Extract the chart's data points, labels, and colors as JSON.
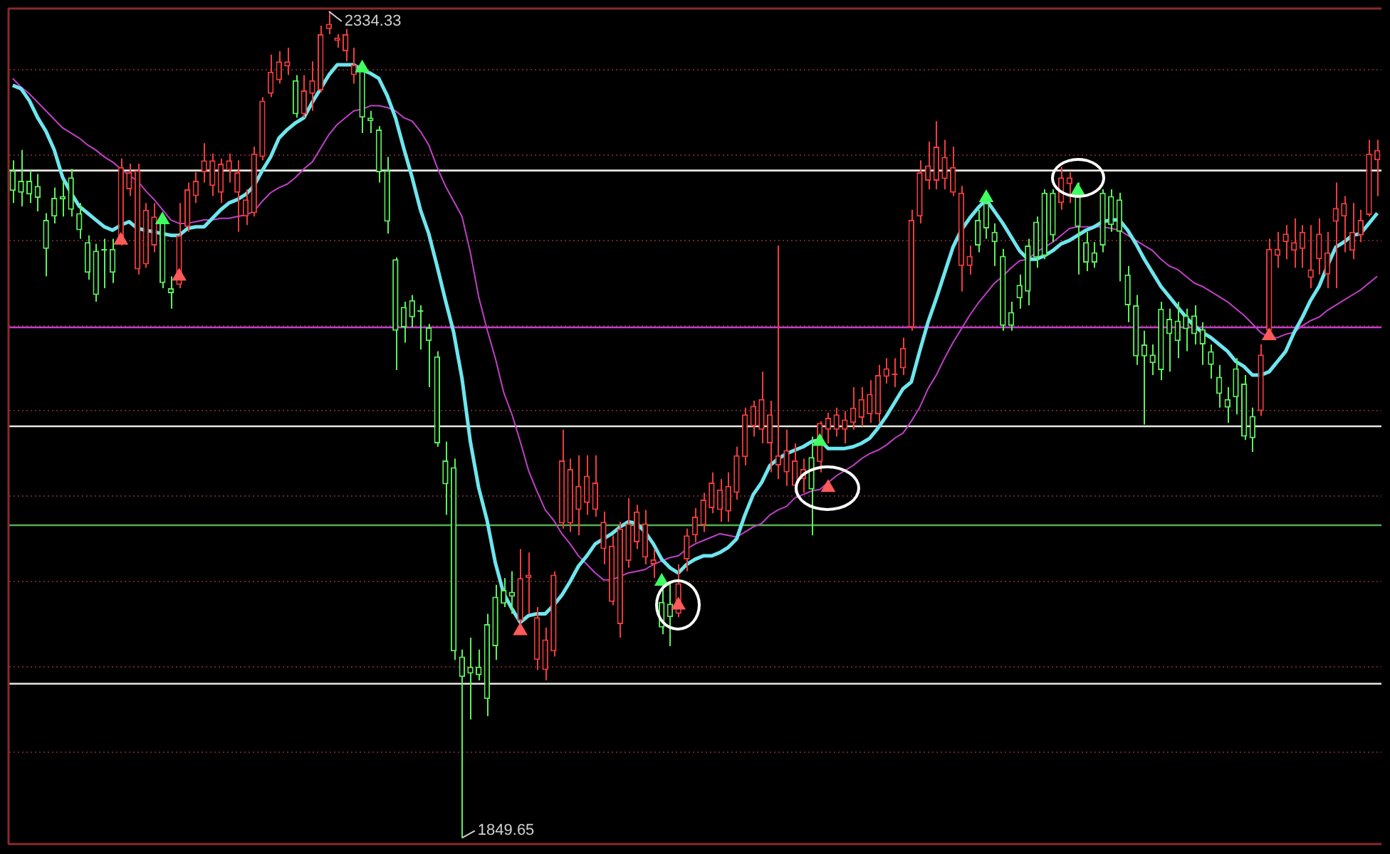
{
  "chart_data": {
    "type": "candlestick",
    "categories": [
      null,
      null,
      null,
      null,
      null,
      null,
      null,
      null,
      null,
      null,
      null,
      null,
      null,
      null,
      null,
      null,
      null,
      null,
      null,
      null,
      null,
      null,
      null,
      null,
      null,
      null,
      null,
      null,
      null,
      null,
      null,
      null,
      null,
      null,
      null,
      null,
      null,
      null,
      null,
      null,
      null,
      null,
      null,
      null,
      null,
      null,
      null,
      null,
      null,
      null,
      null,
      null,
      null,
      null,
      null,
      null,
      null,
      null,
      null,
      null,
      null,
      null,
      null,
      null,
      null,
      null,
      null,
      null,
      null,
      null,
      null,
      null,
      null,
      null,
      null,
      null,
      null,
      null,
      null,
      null,
      null,
      null,
      null,
      null,
      null,
      null,
      null,
      null,
      null,
      null,
      null,
      null,
      null,
      null,
      null,
      null,
      null,
      null,
      null,
      null,
      null,
      null,
      null,
      null,
      null,
      null,
      null,
      null,
      null,
      null,
      null,
      null,
      null,
      null,
      null,
      null,
      null,
      null,
      null,
      null,
      null,
      null,
      null,
      null,
      null,
      null,
      null,
      null,
      null,
      null,
      null,
      null,
      null,
      null,
      null,
      null,
      null,
      null,
      null,
      null,
      null,
      null,
      null,
      null,
      null,
      null,
      null,
      null,
      null,
      null,
      null,
      null,
      null,
      null,
      null,
      null,
      null,
      null,
      null,
      null,
      null,
      null,
      null,
      null,
      null
    ],
    "ohlc": [
      [
        2241,
        2247,
        2222,
        2229
      ],
      [
        2235,
        2253,
        2220,
        2228
      ],
      [
        2235,
        2241,
        2222,
        2227
      ],
      [
        2232,
        2239,
        2217,
        2225
      ],
      [
        2212,
        2216,
        2179,
        2195
      ],
      [
        2225,
        2231,
        2210,
        2214
      ],
      [
        2226,
        2235,
        2214,
        2224
      ],
      [
        2237,
        2242,
        2214,
        2218
      ],
      [
        2216,
        2222,
        2201,
        2206
      ],
      [
        2199,
        2203,
        2177,
        2181
      ],
      [
        2194,
        2198,
        2164,
        2168
      ],
      [
        2195,
        2201,
        2172,
        2194
      ],
      [
        2195,
        2201,
        2175,
        2181
      ],
      [
        2199,
        2248,
        2197,
        2243
      ],
      [
        2230,
        2245,
        2226,
        2240
      ],
      [
        2183,
        2245,
        2180,
        2241
      ],
      [
        2186,
        2222,
        2184,
        2218
      ],
      [
        2197,
        2222,
        2193,
        2214
      ],
      [
        2212,
        2215,
        2172,
        2175
      ],
      [
        2172,
        2179,
        2160,
        2169
      ],
      [
        2174,
        2222,
        2172,
        2203
      ],
      [
        2208,
        2234,
        2205,
        2230
      ],
      [
        2226,
        2240,
        2222,
        2235
      ],
      [
        2240,
        2257,
        2234,
        2247
      ],
      [
        2232,
        2251,
        2226,
        2247
      ],
      [
        2228,
        2248,
        2222,
        2245
      ],
      [
        2241,
        2251,
        2234,
        2247
      ],
      [
        2228,
        2247,
        2205,
        2240
      ],
      [
        2214,
        2230,
        2209,
        2224
      ],
      [
        2216,
        2255,
        2214,
        2251
      ],
      [
        2249,
        2284,
        2247,
        2282
      ],
      [
        2286,
        2309,
        2284,
        2299
      ],
      [
        2294,
        2311,
        2292,
        2305
      ],
      [
        2302,
        2313,
        2297,
        2305
      ],
      [
        2294,
        2297,
        2272,
        2274
      ],
      [
        2274,
        2297,
        2272,
        2288
      ],
      [
        2286,
        2305,
        2276,
        2294
      ],
      [
        2288,
        2326,
        2287,
        2321
      ],
      [
        2324,
        2334.33,
        2321,
        2327
      ],
      [
        2317,
        2321,
        2313,
        2319
      ],
      [
        2311,
        2324,
        2305,
        2321
      ],
      [
        2297,
        2313,
        2292,
        2303
      ],
      [
        2301,
        2305,
        2263,
        2272
      ],
      [
        2272,
        2276,
        2263,
        2270
      ],
      [
        2265,
        2267,
        2234,
        2240
      ],
      [
        2241,
        2249,
        2204,
        2211
      ],
      [
        2189,
        2190,
        2124,
        2147
      ],
      [
        2161,
        2164,
        2140,
        2149
      ],
      [
        2165,
        2168,
        2149,
        2155
      ],
      [
        2159,
        2162,
        2136,
        2158
      ],
      [
        2149,
        2151,
        2114,
        2141
      ],
      [
        2132,
        2135,
        2079,
        2081
      ],
      [
        2071,
        2082,
        2039,
        2057
      ],
      [
        2067,
        2072,
        1954,
        1959
      ],
      [
        1956,
        1960,
        1849.65,
        1944
      ],
      [
        1950,
        1967,
        1919,
        1946
      ],
      [
        1950,
        1960,
        1942,
        1945
      ],
      [
        1975,
        1981,
        1921,
        1931
      ],
      [
        1991,
        1998,
        1954,
        1962
      ],
      [
        1995,
        2002,
        1985,
        1987
      ],
      [
        1994,
        2006,
        1981,
        1991
      ],
      [
        1977,
        2019,
        1973,
        2002
      ],
      [
        2002,
        2017,
        1981,
        2004
      ],
      [
        1954,
        1985,
        1948,
        1979
      ],
      [
        1948,
        1973,
        1942,
        1966
      ],
      [
        1959,
        2006,
        1956,
        2004
      ],
      [
        2034,
        2089,
        2031,
        2071
      ],
      [
        2034,
        2072,
        2029,
        2066
      ],
      [
        2042,
        2074,
        2027,
        2056
      ],
      [
        2046,
        2074,
        2039,
        2062
      ],
      [
        2042,
        2074,
        2038,
        2058
      ],
      [
        2019,
        2041,
        2010,
        2035
      ],
      [
        1988,
        2027,
        1986,
        2021
      ],
      [
        1975,
        2035,
        1967,
        2031
      ],
      [
        2012,
        2049,
        2008,
        2034
      ],
      [
        2023,
        2045,
        2019,
        2041
      ],
      [
        2014,
        2042,
        2010,
        2034
      ],
      [
        2010,
        2019,
        2002,
        2013
      ],
      [
        1988,
        2002,
        1969,
        1973
      ],
      [
        1987,
        1999,
        1962,
        1979
      ],
      [
        1981,
        2010,
        1979,
        1999
      ],
      [
        2013,
        2031,
        2006,
        2027
      ],
      [
        2027,
        2043,
        2023,
        2038
      ],
      [
        2033,
        2052,
        2029,
        2048
      ],
      [
        2043,
        2064,
        2040,
        2058
      ],
      [
        2042,
        2060,
        2035,
        2054
      ],
      [
        2041,
        2064,
        2035,
        2056
      ],
      [
        2052,
        2079,
        2048,
        2074
      ],
      [
        2073,
        2102,
        2068,
        2098
      ],
      [
        2091,
        2106,
        2085,
        2103
      ],
      [
        2089,
        2123,
        2081,
        2107
      ],
      [
        2081,
        2106,
        2064,
        2098
      ],
      [
        2068,
        2197,
        2060,
        2074
      ],
      [
        2064,
        2089,
        2056,
        2077
      ],
      [
        2056,
        2081,
        2052,
        2071
      ],
      [
        2060,
        2072,
        2052,
        2066
      ],
      [
        2073,
        2085,
        2027,
        2054
      ],
      [
        2070,
        2094,
        2064,
        2093
      ],
      [
        2089,
        2099,
        2081,
        2096
      ],
      [
        2089,
        2102,
        2085,
        2098
      ],
      [
        2089,
        2100,
        2081,
        2095
      ],
      [
        2093,
        2114,
        2089,
        2102
      ],
      [
        2096,
        2114,
        2091,
        2107
      ],
      [
        2098,
        2118,
        2093,
        2110
      ],
      [
        2098,
        2127,
        2093,
        2121
      ],
      [
        2120,
        2131,
        2116,
        2125
      ],
      [
        2121,
        2131,
        2114,
        2122
      ],
      [
        2125,
        2143,
        2121,
        2137
      ],
      [
        2149,
        2218,
        2147,
        2212
      ],
      [
        2214,
        2247,
        2210,
        2240
      ],
      [
        2235,
        2258,
        2230,
        2244
      ],
      [
        2235,
        2270,
        2230,
        2255
      ],
      [
        2236,
        2259,
        2230,
        2249
      ],
      [
        2228,
        2255,
        2226,
        2243
      ],
      [
        2185,
        2232,
        2170,
        2228
      ],
      [
        2185,
        2197,
        2180,
        2191
      ],
      [
        2212,
        2218,
        2193,
        2197
      ],
      [
        2222,
        2226,
        2201,
        2207
      ],
      [
        2205,
        2210,
        2185,
        2199
      ],
      [
        2191,
        2195,
        2147,
        2150
      ],
      [
        2158,
        2164,
        2147,
        2150
      ],
      [
        2174,
        2180,
        2160,
        2166
      ],
      [
        2197,
        2201,
        2162,
        2170
      ],
      [
        2211,
        2214,
        2184,
        2190
      ],
      [
        2228,
        2230,
        2189,
        2191
      ],
      [
        2228,
        2230,
        2199,
        2203
      ],
      [
        2222,
        2243,
        2218,
        2237
      ],
      [
        2233,
        2240,
        2222,
        2237
      ],
      [
        2230,
        2234,
        2180,
        2208
      ],
      [
        2199,
        2205,
        2182,
        2187
      ],
      [
        2193,
        2199,
        2184,
        2187
      ],
      [
        2228,
        2230,
        2193,
        2197
      ],
      [
        2226,
        2230,
        2205,
        2209
      ],
      [
        2224,
        2228,
        2176,
        2205
      ],
      [
        2180,
        2185,
        2152,
        2162
      ],
      [
        2162,
        2168,
        2127,
        2132
      ],
      [
        2139,
        2147,
        2092,
        2132
      ],
      [
        2133,
        2139,
        2121,
        2128
      ],
      [
        2160,
        2164,
        2118,
        2124
      ],
      [
        2154,
        2160,
        2123,
        2145
      ],
      [
        2153,
        2164,
        2131,
        2141
      ],
      [
        2156,
        2160,
        2135,
        2148
      ],
      [
        2156,
        2162,
        2139,
        2145
      ],
      [
        2148,
        2152,
        2127,
        2139
      ],
      [
        2135,
        2139,
        2119,
        2127
      ],
      [
        2120,
        2127,
        2102,
        2110
      ],
      [
        2107,
        2114,
        2093,
        2102
      ],
      [
        2125,
        2131,
        2098,
        2108
      ],
      [
        2116,
        2121,
        2083,
        2085
      ],
      [
        2097,
        2102,
        2076,
        2084
      ],
      [
        2100,
        2139,
        2097,
        2133
      ],
      [
        2147,
        2201,
        2143,
        2195
      ],
      [
        2191,
        2205,
        2184,
        2195
      ],
      [
        2199,
        2209,
        2189,
        2204
      ],
      [
        2194,
        2213,
        2184,
        2199
      ],
      [
        2195,
        2209,
        2184,
        2205
      ],
      [
        2178,
        2209,
        2172,
        2183
      ],
      [
        2189,
        2213,
        2180,
        2204
      ],
      [
        2180,
        2205,
        2172,
        2193
      ],
      [
        2211,
        2234,
        2172,
        2219
      ],
      [
        2214,
        2226,
        2193,
        2222
      ],
      [
        2194,
        2222,
        2189,
        2205
      ],
      [
        2203,
        2218,
        2199,
        2212
      ],
      [
        2215,
        2259,
        2214,
        2251
      ],
      [
        2247,
        2259,
        2226,
        2253
      ]
    ],
    "colors": [
      "#5cf05c",
      "#5cf05c",
      "#5cf05c",
      "#5cf05c",
      "#5cf05c",
      "#5cf05c",
      "#5cf05c",
      "#5cf05c",
      "#5cf05c",
      "#5cf05c",
      "#5cf05c",
      "#5cf05c",
      "#5cf05c",
      "#f03c3c",
      "#f03c3c",
      "#f03c3c",
      "#f03c3c",
      "#f03c3c",
      "#5cf05c",
      "#5cf05c",
      "#f03c3c",
      "#f03c3c",
      "#f03c3c",
      "#f03c3c",
      "#f03c3c",
      "#f03c3c",
      "#f03c3c",
      "#f03c3c",
      "#f03c3c",
      "#f03c3c",
      "#f03c3c",
      "#f03c3c",
      "#f03c3c",
      "#f03c3c",
      "#5cf05c",
      "#f03c3c",
      "#f03c3c",
      "#f03c3c",
      "#f03c3c",
      "#f03c3c",
      "#f03c3c",
      "#f03c3c",
      "#5cf05c",
      "#5cf05c",
      "#5cf05c",
      "#5cf05c",
      "#5cf05c",
      "#5cf05c",
      "#5cf05c",
      "#5cf05c",
      "#5cf05c",
      "#5cf05c",
      "#5cf05c",
      "#5cf05c",
      "#5cf05c",
      "#5cf05c",
      "#5cf05c",
      "#5cf05c",
      "#5cf05c",
      "#5cf05c",
      "#5cf05c",
      "#f03c3c",
      "#f03c3c",
      "#f03c3c",
      "#f03c3c",
      "#f03c3c",
      "#f03c3c",
      "#f03c3c",
      "#f03c3c",
      "#f03c3c",
      "#f03c3c",
      "#f03c3c",
      "#f03c3c",
      "#f03c3c",
      "#f03c3c",
      "#f03c3c",
      "#f03c3c",
      "#f03c3c",
      "#5cf05c",
      "#5cf05c",
      "#f03c3c",
      "#f03c3c",
      "#f03c3c",
      "#f03c3c",
      "#f03c3c",
      "#f03c3c",
      "#f03c3c",
      "#f03c3c",
      "#f03c3c",
      "#f03c3c",
      "#f03c3c",
      "#f03c3c",
      "#f03c3c",
      "#f03c3c",
      "#f03c3c",
      "#f03c3c",
      "#5cf05c",
      "#f03c3c",
      "#f03c3c",
      "#f03c3c",
      "#f03c3c",
      "#f03c3c",
      "#f03c3c",
      "#f03c3c",
      "#f03c3c",
      "#f03c3c",
      "#f03c3c",
      "#f03c3c",
      "#f03c3c",
      "#f03c3c",
      "#f03c3c",
      "#f03c3c",
      "#f03c3c",
      "#f03c3c",
      "#f03c3c",
      "#f03c3c",
      "#5cf05c",
      "#5cf05c",
      "#5cf05c",
      "#5cf05c",
      "#5cf05c",
      "#5cf05c",
      "#5cf05c",
      "#5cf05c",
      "#5cf05c",
      "#5cf05c",
      "#f03c3c",
      "#f03c3c",
      "#5cf05c",
      "#5cf05c",
      "#5cf05c",
      "#5cf05c",
      "#5cf05c",
      "#5cf05c",
      "#5cf05c",
      "#5cf05c",
      "#5cf05c",
      "#5cf05c",
      "#5cf05c",
      "#5cf05c",
      "#5cf05c",
      "#5cf05c",
      "#5cf05c",
      "#5cf05c",
      "#5cf05c",
      "#5cf05c",
      "#5cf05c",
      "#5cf05c",
      "#5cf05c",
      "#5cf05c",
      "#f03c3c",
      "#f03c3c",
      "#f03c3c",
      "#f03c3c",
      "#f03c3c",
      "#f03c3c",
      "#f03c3c",
      "#f03c3c",
      "#f03c3c",
      "#f03c3c",
      "#f03c3c",
      "#f03c3c",
      "#f03c3c",
      "#f03c3c",
      "#f03c3c"
    ],
    "series": [
      {
        "type": "line",
        "color": "#6ee6ee",
        "values": [
          2291,
          2289,
          2282,
          2272,
          2264,
          2253,
          2237,
          2228,
          2220,
          2216,
          2212,
          2208,
          2206,
          2209,
          2211,
          2207,
          2206,
          2205,
          2204,
          2203,
          2203,
          2207,
          2208,
          2208,
          2213,
          2218,
          2222,
          2224,
          2227,
          2232,
          2241,
          2249,
          2260,
          2265,
          2269,
          2272,
          2281,
          2289,
          2297,
          2303,
          2303,
          2303,
          2300,
          2298,
          2295,
          2285,
          2272,
          2254,
          2237,
          2218,
          2204,
          2185,
          2165,
          2146,
          2119,
          2082,
          2055,
          2036,
          2011,
          1993,
          1984,
          1976,
          1980,
          1981,
          1981,
          1986,
          1992,
          2000,
          2009,
          2015,
          2022,
          2025,
          2028,
          2032,
          2035,
          2034,
          2029,
          2022,
          2013,
          2008,
          2005,
          2010,
          2013,
          2015,
          2015,
          2017,
          2020,
          2025,
          2039,
          2051,
          2058,
          2068,
          2072,
          2075,
          2077,
          2079,
          2082,
          2083,
          2078,
          2078,
          2078,
          2079,
          2081,
          2084,
          2090,
          2097,
          2105,
          2113,
          2117,
          2135,
          2152,
          2166,
          2181,
          2196,
          2206,
          2213,
          2219,
          2224,
          2217,
          2210,
          2202,
          2194,
          2189,
          2189,
          2191,
          2194,
          2198,
          2200,
          2203,
          2206,
          2208,
          2211,
          2212,
          2212,
          2206,
          2198,
          2189,
          2181,
          2173,
          2167,
          2161,
          2155,
          2150,
          2146,
          2143,
          2139,
          2135,
          2129,
          2126,
          2121,
          2121,
          2123,
          2129,
          2135,
          2146,
          2155,
          2165,
          2173,
          2185,
          2196,
          2199,
          2203,
          2204,
          2210,
          2216
        ]
      },
      {
        "type": "line",
        "color": "#c040c8",
        "values": [
          2295,
          2290,
          2286,
          2281,
          2276,
          2271,
          2266,
          2263,
          2260,
          2256,
          2253,
          2249,
          2246,
          2242,
          2238,
          2235,
          2229,
          2224,
          2218,
          2212,
          2210,
          2210,
          2211,
          2212,
          2212,
          2213,
          2213,
          2214,
          2215,
          2217,
          2223,
          2228,
          2231,
          2233,
          2237,
          2242,
          2246,
          2254,
          2262,
          2268,
          2272,
          2276,
          2277,
          2279,
          2279,
          2278,
          2276,
          2272,
          2270,
          2264,
          2256,
          2243,
          2232,
          2223,
          2214,
          2193,
          2167,
          2148,
          2131,
          2111,
          2098,
          2082,
          2065,
          2053,
          2042,
          2036,
          2028,
          2022,
          2015,
          2010,
          2005,
          2001,
          2001,
          2003,
          2005,
          2006,
          2007,
          2010,
          2012,
          2014,
          2015,
          2019,
          2022,
          2024,
          2026,
          2028,
          2027,
          2026,
          2029,
          2032,
          2034,
          2039,
          2042,
          2044,
          2049,
          2051,
          2053,
          2054,
          2058,
          2062,
          2065,
          2068,
          2072,
          2075,
          2077,
          2080,
          2084,
          2087,
          2094,
          2102,
          2113,
          2121,
          2131,
          2140,
          2148,
          2156,
          2163,
          2169,
          2175,
          2179,
          2184,
          2188,
          2189,
          2193,
          2196,
          2199,
          2203,
          2207,
          2208,
          2208,
          2208,
          2208,
          2207,
          2206,
          2203,
          2200,
          2197,
          2194,
          2189,
          2185,
          2183,
          2179,
          2175,
          2173,
          2170,
          2167,
          2164,
          2160,
          2156,
          2151,
          2146,
          2143,
          2143,
          2145,
          2146,
          2150,
          2153,
          2155,
          2159,
          2162,
          2165,
          2168,
          2171,
          2175,
          2179
        ]
      },
      {
        "type": "scatter",
        "color": "#ff5a5a",
        "marker": "triangle",
        "values": [
          null,
          null,
          null,
          null,
          null,
          null,
          null,
          null,
          null,
          null,
          null,
          null,
          null,
          2200,
          null,
          null,
          null,
          null,
          null,
          null,
          2179,
          null,
          null,
          null,
          null,
          null,
          null,
          null,
          null,
          null,
          null,
          null,
          null,
          null,
          null,
          null,
          null,
          null,
          null,
          null,
          null,
          null,
          null,
          null,
          null,
          null,
          null,
          null,
          null,
          null,
          null,
          null,
          null,
          null,
          null,
          null,
          null,
          null,
          null,
          null,
          null,
          1971,
          null,
          null,
          null,
          null,
          null,
          null,
          null,
          null,
          null,
          null,
          null,
          null,
          null,
          null,
          null,
          null,
          null,
          null,
          1986,
          null,
          null,
          null,
          null,
          null,
          null,
          null,
          null,
          null,
          null,
          null,
          null,
          null,
          null,
          null,
          null,
          null,
          2055,
          null,
          null,
          null,
          null,
          null,
          null,
          null,
          null,
          null,
          null,
          null,
          null,
          null,
          null,
          null,
          null,
          null,
          null,
          null,
          null,
          null,
          null,
          null,
          null,
          null,
          null,
          null,
          null,
          null,
          null,
          null,
          null,
          null,
          null,
          null,
          null,
          null,
          null,
          null,
          null,
          null,
          null,
          null,
          null,
          null,
          null,
          null,
          null,
          null,
          null,
          null,
          null,
          2144,
          null,
          null,
          null,
          null,
          null,
          null,
          null,
          null,
          null,
          null,
          null,
          null,
          null
        ]
      },
      {
        "type": "scatter",
        "color": "#40ff60",
        "marker": "triangle",
        "values": [
          null,
          null,
          null,
          null,
          null,
          null,
          null,
          null,
          null,
          null,
          null,
          null,
          null,
          null,
          null,
          null,
          null,
          null,
          2212,
          null,
          null,
          null,
          null,
          null,
          null,
          null,
          null,
          null,
          null,
          null,
          null,
          null,
          null,
          null,
          null,
          null,
          null,
          null,
          null,
          null,
          null,
          null,
          2301,
          null,
          null,
          null,
          null,
          null,
          null,
          null,
          null,
          null,
          null,
          null,
          null,
          null,
          null,
          null,
          null,
          null,
          null,
          null,
          null,
          null,
          null,
          null,
          null,
          null,
          null,
          null,
          null,
          null,
          null,
          null,
          null,
          null,
          null,
          null,
          2000,
          null,
          null,
          null,
          null,
          null,
          null,
          null,
          null,
          null,
          null,
          null,
          null,
          null,
          null,
          null,
          null,
          null,
          null,
          2082,
          null,
          null,
          null,
          null,
          null,
          null,
          null,
          null,
          null,
          null,
          null,
          null,
          null,
          null,
          null,
          null,
          null,
          null,
          null,
          2225,
          null,
          null,
          null,
          null,
          null,
          null,
          null,
          null,
          null,
          null,
          2229,
          null,
          null,
          null,
          null,
          null,
          null,
          null,
          null,
          null,
          null,
          null,
          null,
          null,
          null,
          null,
          null,
          null,
          null,
          null,
          null,
          null,
          null,
          null,
          null,
          null,
          null,
          null,
          null,
          null,
          null,
          null,
          null,
          null,
          null,
          null,
          null
        ]
      }
    ],
    "ylim": [
      1846,
      2336
    ],
    "yticks": [
      {
        "value": 1900,
        "label": null
      },
      {
        "value": 1950,
        "label": null
      },
      {
        "value": 2000,
        "label": null
      },
      {
        "value": 2050,
        "label": null
      },
      {
        "value": 2100,
        "label": null
      },
      {
        "value": 2150,
        "label": null
      },
      {
        "value": 2200,
        "label": null
      },
      {
        "value": 2250,
        "label": null
      },
      {
        "value": 2300,
        "label": null
      }
    ],
    "grid": "y",
    "tick_labels": false,
    "legend": false,
    "ref_lines": [
      {
        "axis": "y",
        "value": 2241,
        "color": "#e8e8e0"
      },
      {
        "axis": "y",
        "value": 2149,
        "color": "#c040c8"
      },
      {
        "axis": "y",
        "value": 2091,
        "color": "#e8e8e0"
      },
      {
        "axis": "y",
        "value": 2033,
        "color": "#50b050"
      },
      {
        "axis": "y",
        "value": 1940,
        "color": "#e8e8e0"
      }
    ],
    "annotations": [
      "2334.33",
      "1849.65"
    ]
  }
}
